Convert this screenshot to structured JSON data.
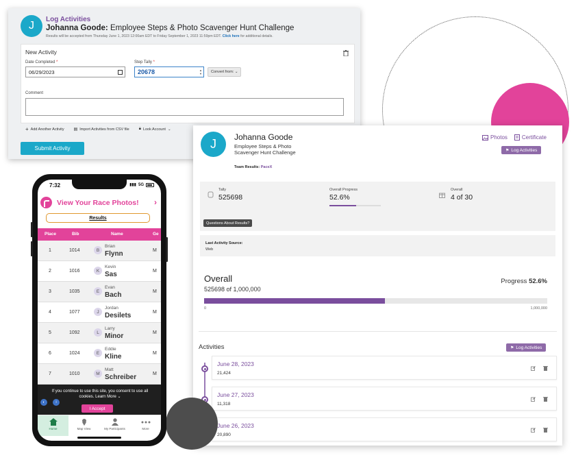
{
  "log_activities": {
    "avatar_letter": "J",
    "title": "Log Activities",
    "participant": "Johanna Goode:",
    "event": "Employee Steps & Photo Scavenger Hunt Challenge",
    "note": "Results will be accepted from Thursday June 1, 2023 12:00am EDT to Friday September 1, 2023 11:59pm EDT.",
    "note_link": "Click here",
    "note_suffix": "for additional details.",
    "new_activity": {
      "title": "New Activity",
      "date_label": "Date Completed",
      "date_value": "06/29/2023",
      "tally_label": "Step Tally",
      "required_mark": "*",
      "tally_value": "20678",
      "convert_label": "Convert from:",
      "comment_label": "Comment",
      "comment_value": ""
    },
    "actions": {
      "add_another": "Add Another Activity",
      "import_csv": "Import Activities from CSV file",
      "look_account": "Look Account"
    },
    "submit_label": "Submit Activity"
  },
  "results": {
    "avatar_letter": "J",
    "name": "Johanna Goode",
    "event": "Employee Steps & Photo Scavenger Hunt Challenge",
    "team_label": "Team Results:",
    "team_value": "PaceX",
    "links": {
      "photos": "Photos",
      "certificate": "Certificate"
    },
    "log_activities_btn": "Log Activities",
    "stats": {
      "tally_label": "Tally",
      "tally_value": "525698",
      "progress_label": "Overall Progress",
      "progress_value": "52.6%",
      "progress_fraction": 0.526,
      "overall_label": "Overall",
      "overall_value": "4 of 30",
      "questions_btn": "Questions About Results?"
    },
    "last_source_label": "Last Activity Source:",
    "last_source_value": "Web",
    "overall": {
      "title": "Overall",
      "subtitle": "525698 of 1,000,000",
      "progress_label": "Progress",
      "progress_value": "52.6%",
      "progress_fraction": 0.526,
      "min": "0",
      "max": "1,000,000"
    },
    "activities_title": "Activities",
    "activities": [
      {
        "date": "June 28, 2023",
        "value": "21,424"
      },
      {
        "date": "June 27, 2023",
        "value": "11,318"
      },
      {
        "date": "June 26, 2023",
        "value": "20,890"
      }
    ]
  },
  "phone": {
    "time": "7:32",
    "signal": "5G",
    "banner": "View Your Race Photos!",
    "results_tab": "Results",
    "columns": {
      "place": "Place",
      "bib": "Bib",
      "name": "Name",
      "gender": "Ge"
    },
    "rows": [
      {
        "place": "1",
        "bib": "1014",
        "initial": "B",
        "first": "Brian",
        "last": "Flynn",
        "g": "M"
      },
      {
        "place": "2",
        "bib": "1016",
        "initial": "K",
        "first": "Kevin",
        "last": "Sas",
        "g": "M"
      },
      {
        "place": "3",
        "bib": "1035",
        "initial": "E",
        "first": "Evan",
        "last": "Bach",
        "g": "M"
      },
      {
        "place": "4",
        "bib": "1077",
        "initial": "J",
        "first": "Jordan",
        "last": "Desilets",
        "g": "M"
      },
      {
        "place": "5",
        "bib": "1092",
        "initial": "L",
        "first": "Larry",
        "last": "Minor",
        "g": "M"
      },
      {
        "place": "6",
        "bib": "1024",
        "initial": "E",
        "first": "Eddie",
        "last": "Kline",
        "g": "M"
      },
      {
        "place": "7",
        "bib": "1010",
        "initial": "M",
        "first": "Matt",
        "last": "Schreiber",
        "g": "M"
      }
    ],
    "cookie": {
      "text": "If you continue to use this site, you consent to use all cookies.",
      "learn_more": "Learn More",
      "accept": "I Accept"
    },
    "nav": {
      "home": "Home",
      "map": "Map View",
      "participants": "My Participants",
      "more": "More"
    }
  },
  "colors": {
    "accent_purple": "#7a4e9d",
    "accent_teal": "#1ba8c9",
    "accent_pink": "#e2439a"
  }
}
